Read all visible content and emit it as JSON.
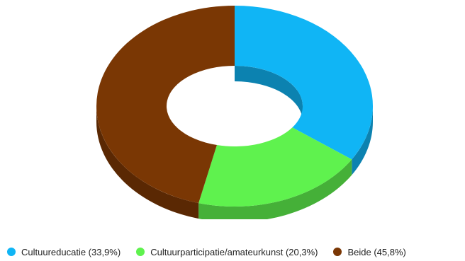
{
  "chart_data": {
    "type": "pie",
    "style": "3d-donut",
    "categories": [
      "Cultuureducatie",
      "Cultuurparticipatie/amateurkunst",
      "Beide"
    ],
    "values": [
      33.9,
      20.3,
      45.8
    ],
    "legend_labels": [
      "Cultuureducatie (33,9%)",
      "Cultuurparticipatie/amateurkunst (20,3%)",
      "Beide (45,8%)"
    ],
    "colors": [
      "#10b5f5",
      "#5ff24e",
      "#7a3704"
    ],
    "side_colors": [
      "#0c82b0",
      "#45b038",
      "#5a2803"
    ],
    "legend_position": "bottom-left"
  }
}
